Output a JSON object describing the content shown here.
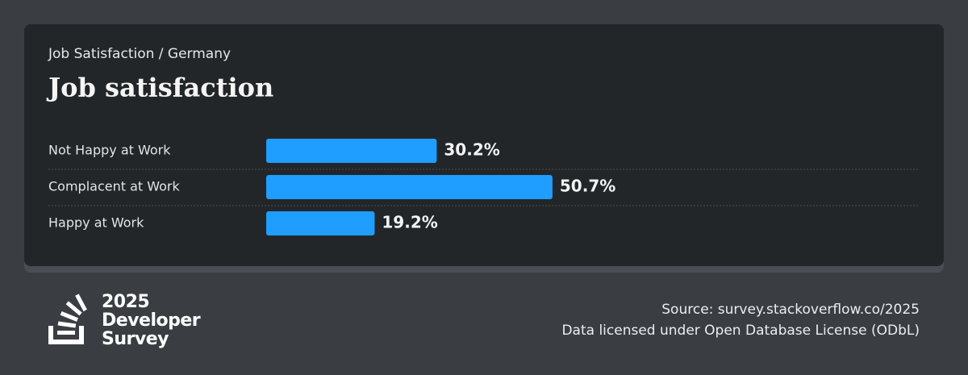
{
  "breadcrumb": "Job Satisfaction / Germany",
  "chart_data": {
    "type": "bar",
    "orientation": "horizontal",
    "title": "Job satisfaction",
    "categories": [
      "Not Happy at Work",
      "Complacent at Work",
      "Happy at Work"
    ],
    "values": [
      30.2,
      50.7,
      19.2
    ],
    "value_labels": [
      "30.2%",
      "50.7%",
      "19.2%"
    ],
    "color": "#1f9eff"
  },
  "footer": {
    "logo_lines": [
      "2025",
      "Developer",
      "Survey"
    ],
    "source": "Source: survey.stackoverflow.co/2025",
    "license": "Data licensed under Open Database License (ODbL)"
  }
}
